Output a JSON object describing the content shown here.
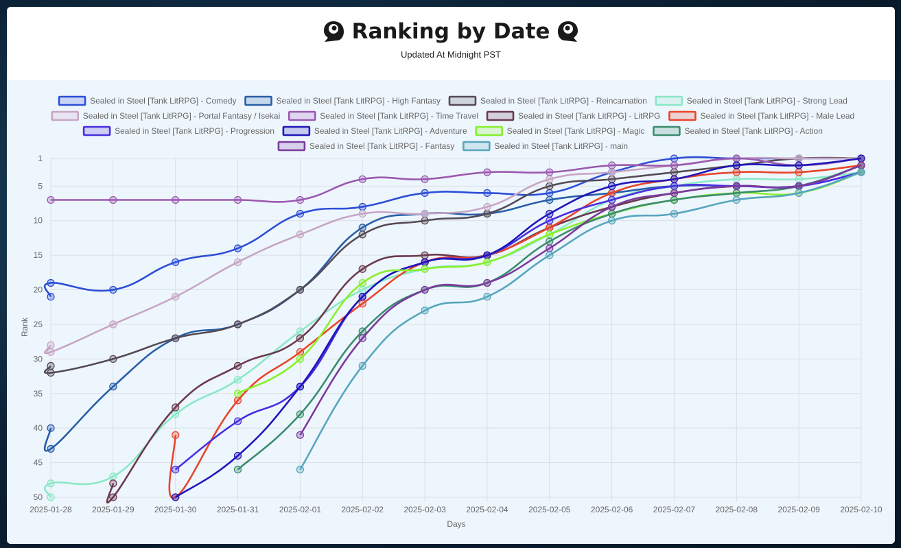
{
  "page": {
    "title": "Ranking by Date",
    "subtitle": "Updated At Midnight PST"
  },
  "chart_data": {
    "type": "line",
    "xlabel": "Days",
    "ylabel": "Rank",
    "ylim": [
      1,
      50
    ],
    "y_inverted": true,
    "y_ticks": [
      1,
      5,
      10,
      15,
      20,
      25,
      30,
      35,
      40,
      45,
      50
    ],
    "grid": true,
    "legend_position": "top",
    "x": [
      "2025-01-28",
      "2025-01-29",
      "2025-01-30",
      "2025-01-31",
      "2025-02-01",
      "2025-02-02",
      "2025-02-03",
      "2025-02-04",
      "2025-02-05",
      "2025-02-06",
      "2025-02-07",
      "2025-02-08",
      "2025-02-09",
      "2025-02-10"
    ],
    "series": [
      {
        "name": "Sealed in Steel [Tank LitRPG] - Comedy",
        "color": "#2d4fd6",
        "points": [
          [
            0,
            21
          ],
          [
            0,
            19
          ],
          [
            1,
            20
          ],
          [
            2,
            16
          ],
          [
            3,
            14
          ],
          [
            4,
            9
          ],
          [
            5,
            8
          ],
          [
            6,
            6
          ],
          [
            7,
            6
          ],
          [
            8,
            6
          ],
          [
            9,
            3
          ],
          [
            10,
            1
          ],
          [
            11,
            1
          ],
          [
            12,
            1
          ],
          [
            13,
            1
          ]
        ]
      },
      {
        "name": "Sealed in Steel [Tank LitRPG] - High Fantasy",
        "color": "#285ea8",
        "points": [
          [
            0,
            40
          ],
          [
            0,
            43
          ],
          [
            1,
            34
          ],
          [
            2,
            27
          ],
          [
            3,
            25
          ],
          [
            4,
            20
          ],
          [
            5,
            11
          ],
          [
            6,
            9
          ],
          [
            7,
            9
          ],
          [
            8,
            7
          ],
          [
            9,
            6
          ],
          [
            10,
            5
          ],
          [
            11,
            5
          ],
          [
            12,
            5
          ],
          [
            13,
            3
          ]
        ]
      },
      {
        "name": "Sealed in Steel [Tank LitRPG] - Reincarnation",
        "color": "#554a55",
        "points": [
          [
            0,
            31
          ],
          [
            0,
            32
          ],
          [
            1,
            30
          ],
          [
            2,
            27
          ],
          [
            3,
            25
          ],
          [
            4,
            20
          ],
          [
            5,
            12
          ],
          [
            6,
            10
          ],
          [
            7,
            9
          ],
          [
            8,
            5
          ],
          [
            9,
            4
          ],
          [
            10,
            3
          ],
          [
            11,
            2
          ],
          [
            12,
            1
          ],
          [
            13,
            1
          ]
        ]
      },
      {
        "name": "Sealed in Steel [Tank LitRPG] - Strong Lead",
        "color": "#8ae8c6",
        "points": [
          [
            0,
            50
          ],
          [
            0,
            48
          ],
          [
            1,
            47
          ],
          [
            2,
            38
          ],
          [
            3,
            33
          ],
          [
            4,
            26
          ],
          [
            5,
            20
          ],
          [
            6,
            17
          ],
          [
            7,
            16
          ],
          [
            8,
            12
          ],
          [
            9,
            7
          ],
          [
            10,
            5
          ],
          [
            11,
            4
          ],
          [
            12,
            4
          ],
          [
            13,
            3
          ]
        ]
      },
      {
        "name": "Sealed in Steel [Tank LitRPG] - Portal Fantasy / Isekai",
        "color": "#c7a6c5",
        "points": [
          [
            0,
            28
          ],
          [
            0,
            29
          ],
          [
            1,
            25
          ],
          [
            2,
            21
          ],
          [
            3,
            16
          ],
          [
            4,
            12
          ],
          [
            5,
            9
          ],
          [
            6,
            9
          ],
          [
            7,
            8
          ],
          [
            8,
            4
          ],
          [
            9,
            3
          ],
          [
            10,
            2
          ],
          [
            11,
            1
          ],
          [
            12,
            1
          ],
          [
            13,
            1
          ]
        ]
      },
      {
        "name": "Sealed in Steel [Tank LitRPG] - Time Travel",
        "color": "#9b59b0",
        "points": [
          [
            0,
            7
          ],
          [
            1,
            7
          ],
          [
            2,
            7
          ],
          [
            3,
            7
          ],
          [
            4,
            7
          ],
          [
            5,
            4
          ],
          [
            6,
            4
          ],
          [
            7,
            3
          ],
          [
            8,
            3
          ],
          [
            9,
            2
          ],
          [
            10,
            2
          ],
          [
            11,
            1
          ],
          [
            12,
            2
          ],
          [
            13,
            1
          ]
        ]
      },
      {
        "name": "Sealed in Steel [Tank LitRPG] - LitRPG",
        "color": "#6b3a4e",
        "points": [
          [
            1,
            48
          ],
          [
            1,
            50
          ],
          [
            2,
            37
          ],
          [
            3,
            31
          ],
          [
            4,
            27
          ],
          [
            5,
            17
          ],
          [
            6,
            15
          ],
          [
            7,
            15
          ],
          [
            8,
            11
          ],
          [
            9,
            8
          ],
          [
            10,
            6
          ],
          [
            11,
            5
          ],
          [
            12,
            5
          ],
          [
            13,
            2
          ]
        ]
      },
      {
        "name": "Sealed in Steel [Tank LitRPG] - Male Lead",
        "color": "#e8452a",
        "points": [
          [
            2,
            41
          ],
          [
            2,
            50
          ],
          [
            3,
            36
          ],
          [
            4,
            29
          ],
          [
            5,
            22
          ],
          [
            6,
            16
          ],
          [
            7,
            15
          ],
          [
            8,
            11
          ],
          [
            9,
            6
          ],
          [
            10,
            4
          ],
          [
            11,
            3
          ],
          [
            12,
            3
          ],
          [
            13,
            2
          ]
        ]
      },
      {
        "name": "Sealed in Steel [Tank LitRPG] - Progression",
        "color": "#4a2ee0",
        "points": [
          [
            2,
            46
          ],
          [
            3,
            39
          ],
          [
            4,
            34
          ],
          [
            5,
            21
          ],
          [
            6,
            16
          ],
          [
            7,
            15
          ],
          [
            8,
            10
          ],
          [
            9,
            7
          ],
          [
            10,
            5
          ],
          [
            11,
            5
          ],
          [
            12,
            5
          ],
          [
            13,
            3
          ]
        ]
      },
      {
        "name": "Sealed in Steel [Tank LitRPG] - Adventure",
        "color": "#1f17b8",
        "points": [
          [
            2,
            50
          ],
          [
            3,
            44
          ],
          [
            4,
            34
          ],
          [
            5,
            21
          ],
          [
            6,
            16
          ],
          [
            7,
            15
          ],
          [
            8,
            9
          ],
          [
            9,
            5
          ],
          [
            10,
            4
          ],
          [
            11,
            2
          ],
          [
            12,
            2
          ],
          [
            13,
            1
          ]
        ]
      },
      {
        "name": "Sealed in Steel [Tank LitRPG] - Magic",
        "color": "#88f02c",
        "points": [
          [
            3,
            35
          ],
          [
            4,
            30
          ],
          [
            5,
            19
          ],
          [
            6,
            17
          ],
          [
            7,
            16
          ],
          [
            8,
            12
          ],
          [
            9,
            9
          ],
          [
            10,
            7
          ],
          [
            11,
            6
          ],
          [
            12,
            6
          ],
          [
            13,
            3
          ]
        ]
      },
      {
        "name": "Sealed in Steel [Tank LitRPG] - Action",
        "color": "#3a8d6e",
        "points": [
          [
            3,
            46
          ],
          [
            4,
            38
          ],
          [
            5,
            26
          ],
          [
            6,
            20
          ],
          [
            7,
            19
          ],
          [
            8,
            13
          ],
          [
            9,
            9
          ],
          [
            10,
            7
          ],
          [
            11,
            6
          ],
          [
            12,
            5
          ],
          [
            13,
            2
          ]
        ]
      },
      {
        "name": "Sealed in Steel [Tank LitRPG] - Fantasy",
        "color": "#7b3a9e",
        "points": [
          [
            4,
            41
          ],
          [
            5,
            27
          ],
          [
            6,
            20
          ],
          [
            7,
            19
          ],
          [
            8,
            14
          ],
          [
            9,
            8
          ],
          [
            10,
            6
          ],
          [
            11,
            5
          ],
          [
            12,
            5
          ],
          [
            13,
            2
          ]
        ]
      },
      {
        "name": "Sealed in Steel [Tank LitRPG] - main",
        "color": "#56a6bd",
        "points": [
          [
            4,
            46
          ],
          [
            5,
            31
          ],
          [
            6,
            23
          ],
          [
            7,
            21
          ],
          [
            8,
            15
          ],
          [
            9,
            10
          ],
          [
            10,
            9
          ],
          [
            11,
            7
          ],
          [
            12,
            6
          ],
          [
            13,
            3
          ]
        ]
      }
    ]
  }
}
